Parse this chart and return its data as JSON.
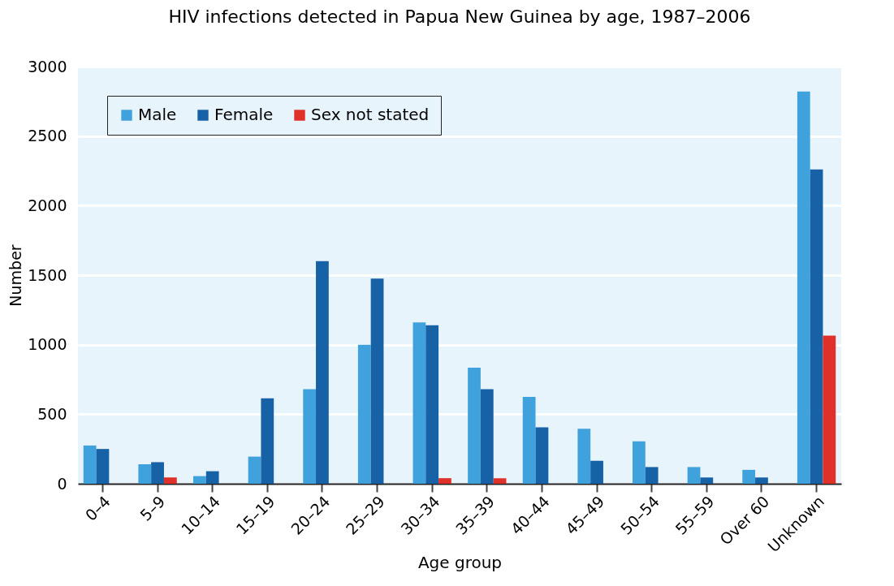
{
  "chart_data": {
    "type": "bar",
    "title": "HIV infections detected in Papua New Guinea by age, 1987–2006",
    "xlabel": "Age group",
    "ylabel": "Number",
    "categories": [
      "0–4",
      "5–9",
      "10–14",
      "15–19",
      "20–24",
      "25–29",
      "30–34",
      "35–39",
      "40–44",
      "45–49",
      "50–54",
      "55–59",
      "Over 60",
      "Unknown"
    ],
    "series": [
      {
        "name": "Male",
        "color": "#40a2dc",
        "values": [
          275,
          140,
          55,
          195,
          680,
          1000,
          1160,
          835,
          625,
          395,
          305,
          120,
          100,
          2820
        ]
      },
      {
        "name": "Female",
        "color": "#1761a6",
        "values": [
          250,
          155,
          90,
          615,
          1600,
          1475,
          1140,
          680,
          405,
          165,
          120,
          45,
          45,
          2260
        ]
      },
      {
        "name": "Sex not stated",
        "color": "#e0302a",
        "values": [
          null,
          45,
          null,
          null,
          null,
          null,
          40,
          40,
          null,
          null,
          null,
          null,
          null,
          1065
        ]
      }
    ],
    "ylim": [
      0,
      3000
    ],
    "yticks": [
      0,
      500,
      1000,
      1500,
      2000,
      2500,
      3000
    ],
    "grid": "y",
    "legend": "top left"
  }
}
